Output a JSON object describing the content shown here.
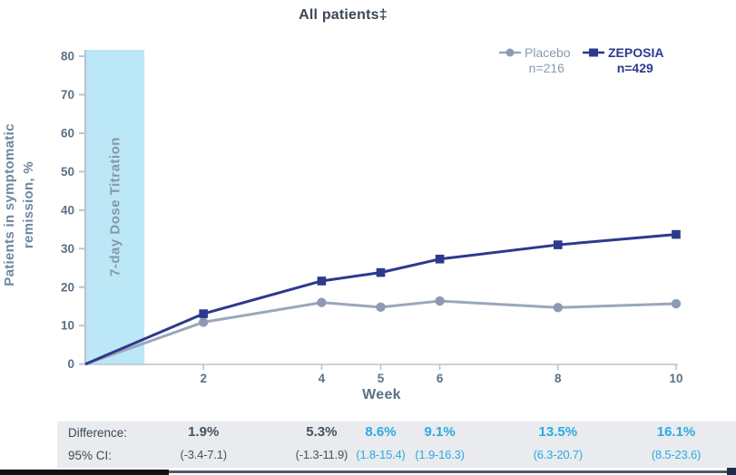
{
  "title": "All patients‡",
  "legend": {
    "placebo": {
      "label": "Placebo",
      "n": "n=216"
    },
    "zeposia": {
      "label": "ZEPOSIA",
      "n": "n=429"
    }
  },
  "chart_data": {
    "type": "line",
    "x": [
      0,
      2,
      4,
      5,
      6,
      8,
      10
    ],
    "series": [
      {
        "name": "Placebo",
        "values": [
          0,
          10.9,
          16.0,
          14.8,
          16.4,
          14.7,
          15.7
        ],
        "color": "#9aa7ba",
        "marker": "circle"
      },
      {
        "name": "ZEPOSIA",
        "values": [
          0,
          13.1,
          21.6,
          23.8,
          27.3,
          31.0,
          33.7
        ],
        "color": "#2c398e",
        "marker": "square"
      }
    ],
    "xlabel": "Week",
    "ylabel": "Patients in symptomatic remission, %",
    "ylabel_lines": [
      "Patients in symptomatic",
      "remission, %"
    ],
    "x_ticks": [
      2,
      4,
      5,
      6,
      8,
      10
    ],
    "y_ticks": [
      0,
      10,
      20,
      30,
      40,
      50,
      60,
      70,
      80
    ],
    "xlim": [
      0,
      10
    ],
    "ylim": [
      0,
      80
    ],
    "grid": false,
    "legend_position": "top-right",
    "annotation_band": {
      "label": "7-day Dose Titration",
      "x_start": 0,
      "x_end": 1,
      "color": "#bce7f7"
    }
  },
  "table": {
    "row1_label": "Difference:",
    "row2_label": "95% CI:",
    "columns": [
      {
        "week": 2,
        "difference": "1.9%",
        "ci": "(-3.4-7.1)",
        "highlight": false
      },
      {
        "week": 4,
        "difference": "5.3%",
        "ci": "(-1.3-11.9)",
        "highlight": false
      },
      {
        "week": 5,
        "difference": "8.6%",
        "ci": "(1.8-15.4)",
        "highlight": true
      },
      {
        "week": 6,
        "difference": "9.1%",
        "ci": "(1.9-16.3)",
        "highlight": true
      },
      {
        "week": 8,
        "difference": "13.5%",
        "ci": "(6.3-20.7)",
        "highlight": true
      },
      {
        "week": 10,
        "difference": "16.1%",
        "ci": "(8.5-23.6)",
        "highlight": true
      }
    ]
  },
  "colors": {
    "placebo": "#9aa7ba",
    "zeposia": "#2c398e",
    "band_fill": "#bce7f7",
    "band_text": "#8298ab",
    "axis_line": "#b9c4cf",
    "tick_text": "#5d7086",
    "title_text": "#3d4854",
    "table_bg": "#e9ebee",
    "table_dark_text": "#47525c",
    "table_highlight_text": "#2aabe3",
    "footer_black": "#121212",
    "footer_slate": "#4e5a67",
    "footer_corner": "#1d2b4e"
  }
}
